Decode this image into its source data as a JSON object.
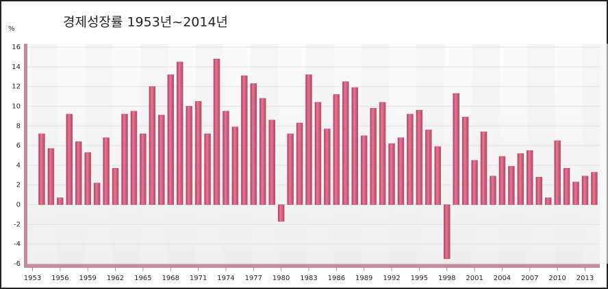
{
  "chart_data": {
    "type": "bar",
    "title": "경제성장률 1953년~2014년",
    "y_label": "%",
    "categories": [
      "1953",
      null,
      null,
      "1956",
      null,
      null,
      "1959",
      null,
      null,
      "1962",
      null,
      null,
      "1965",
      null,
      null,
      "1968",
      null,
      null,
      "1971",
      null,
      null,
      "1974",
      null,
      null,
      "1977",
      null,
      null,
      "1980",
      null,
      null,
      "1983",
      null,
      null,
      "1986",
      null,
      null,
      "1989",
      null,
      null,
      "1992",
      null,
      null,
      "1995",
      null,
      null,
      "1998",
      null,
      null,
      "2001",
      null,
      null,
      "2004",
      null,
      null,
      "2007",
      null,
      null,
      "2010",
      null,
      null,
      "2013",
      null
    ],
    "values": [
      null,
      7.2,
      5.7,
      0.7,
      9.2,
      6.4,
      5.3,
      2.2,
      6.8,
      3.7,
      9.2,
      9.5,
      7.2,
      12.0,
      9.1,
      13.2,
      14.5,
      10.0,
      10.5,
      7.2,
      14.8,
      9.5,
      7.9,
      13.1,
      12.3,
      10.8,
      8.6,
      -1.7,
      7.2,
      8.3,
      13.2,
      10.4,
      7.7,
      11.2,
      12.5,
      11.9,
      7.0,
      9.8,
      10.4,
      6.2,
      6.8,
      9.2,
      9.6,
      7.6,
      5.9,
      -5.5,
      11.3,
      8.9,
      4.5,
      7.4,
      2.9,
      4.9,
      3.9,
      5.2,
      5.5,
      2.8,
      0.7,
      6.5,
      3.7,
      2.3,
      2.9,
      3.3
    ],
    "color": "#c8506e",
    "ylim": [
      -6,
      16
    ],
    "yticks": [
      -6,
      -4,
      -2,
      0,
      2,
      4,
      6,
      8,
      10,
      12,
      14,
      16
    ],
    "grid": true
  }
}
